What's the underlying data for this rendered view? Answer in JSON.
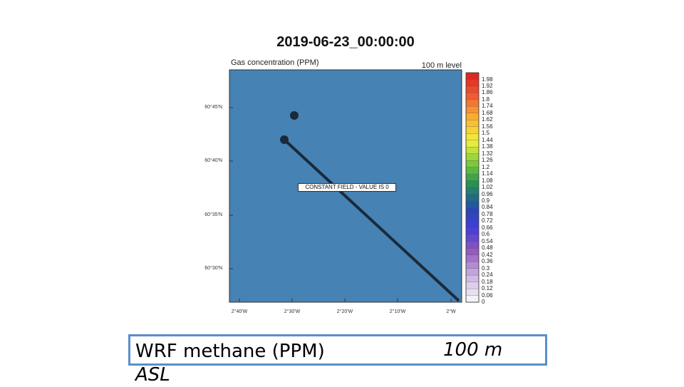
{
  "chart": {
    "title": "2019-06-23_00:00:00",
    "left_subtitle": "Gas concentration (PPM)",
    "right_subtitle": "100 m level",
    "field_note": "CONSTANT FIELD - VALUE IS 0",
    "field_color": "#4682b4",
    "lat_labels": [
      "60°45'N",
      "60°40'N",
      "60°35'N",
      "60°30'N"
    ],
    "lon_labels": [
      "2°40'W",
      "2°30'W",
      "2°20'W",
      "2°10'W",
      "2°W"
    ],
    "colorbar_labels": [
      "1.98",
      "1.92",
      "1.86",
      "1.8",
      "1.74",
      "1.68",
      "1.62",
      "1.56",
      "1.5",
      "1.44",
      "1.38",
      "1.32",
      "1.26",
      "1.2",
      "1.14",
      "1.08",
      "1.02",
      "0.96",
      "0.9",
      "0.84",
      "0.78",
      "0.72",
      "0.66",
      "0.6",
      "0.54",
      "0.48",
      "0.42",
      "0.36",
      "0.3",
      "0.24",
      "0.18",
      "0.12",
      "0.06",
      "0"
    ]
  },
  "caption": {
    "left_line1": "WRF methane (PPM)",
    "left_line2": "ASL",
    "right": "100 m"
  }
}
